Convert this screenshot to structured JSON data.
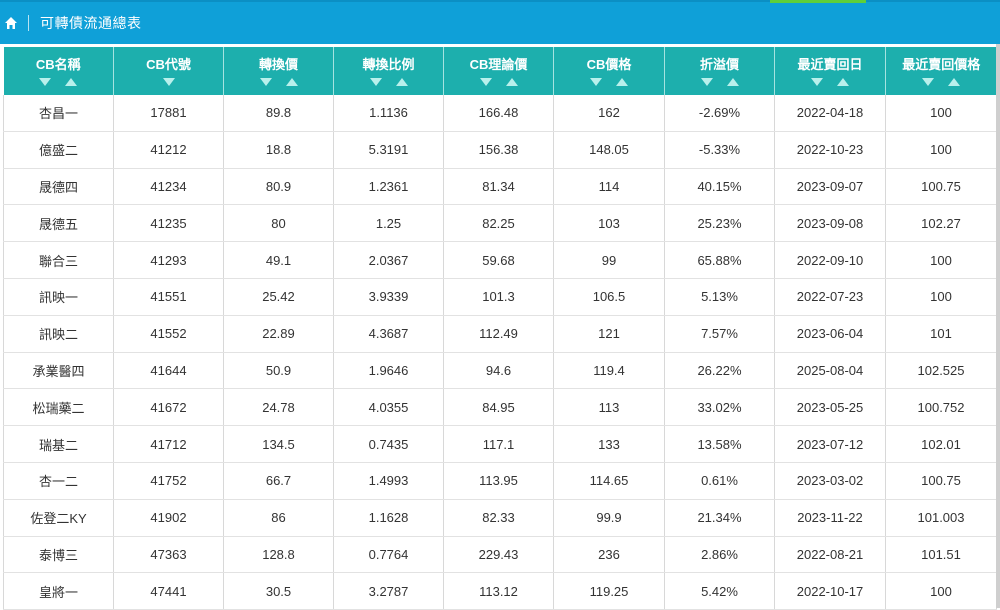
{
  "header": {
    "title": "可轉債流通總表",
    "home_icon": "home-icon",
    "bg_color": "#0fa0d8",
    "accent_color": "#5fcf3a"
  },
  "table": {
    "header_color": "#1dafad",
    "columns": [
      "CB名稱",
      "CB代號",
      "轉換價",
      "轉換比例",
      "CB理論價",
      "CB價格",
      "折溢價",
      "最近賣回日",
      "最近賣回價格"
    ],
    "rows": [
      [
        "杏昌一",
        "17881",
        "89.8",
        "1.1136",
        "166.48",
        "162",
        "-2.69%",
        "2022-04-18",
        "100"
      ],
      [
        "億盛二",
        "41212",
        "18.8",
        "5.3191",
        "156.38",
        "148.05",
        "-5.33%",
        "2022-10-23",
        "100"
      ],
      [
        "晟德四",
        "41234",
        "80.9",
        "1.2361",
        "81.34",
        "114",
        "40.15%",
        "2023-09-07",
        "100.75"
      ],
      [
        "晟德五",
        "41235",
        "80",
        "1.25",
        "82.25",
        "103",
        "25.23%",
        "2023-09-08",
        "102.27"
      ],
      [
        "聯合三",
        "41293",
        "49.1",
        "2.0367",
        "59.68",
        "99",
        "65.88%",
        "2022-09-10",
        "100"
      ],
      [
        "訊映一",
        "41551",
        "25.42",
        "3.9339",
        "101.3",
        "106.5",
        "5.13%",
        "2022-07-23",
        "100"
      ],
      [
        "訊映二",
        "41552",
        "22.89",
        "4.3687",
        "112.49",
        "121",
        "7.57%",
        "2023-06-04",
        "101"
      ],
      [
        "承業醫四",
        "41644",
        "50.9",
        "1.9646",
        "94.6",
        "119.4",
        "26.22%",
        "2025-08-04",
        "102.525"
      ],
      [
        "松瑞藥二",
        "41672",
        "24.78",
        "4.0355",
        "84.95",
        "113",
        "33.02%",
        "2023-05-25",
        "100.752"
      ],
      [
        "瑞基二",
        "41712",
        "134.5",
        "0.7435",
        "117.1",
        "133",
        "13.58%",
        "2023-07-12",
        "102.01"
      ],
      [
        "杏一二",
        "41752",
        "66.7",
        "1.4993",
        "113.95",
        "114.65",
        "0.61%",
        "2023-03-02",
        "100.75"
      ],
      [
        "佐登二KY",
        "41902",
        "86",
        "1.1628",
        "82.33",
        "99.9",
        "21.34%",
        "2023-11-22",
        "101.003"
      ],
      [
        "泰博三",
        "47363",
        "128.8",
        "0.7764",
        "229.43",
        "236",
        "2.86%",
        "2022-08-21",
        "101.51"
      ],
      [
        "皇將一",
        "47441",
        "30.5",
        "3.2787",
        "113.12",
        "119.25",
        "5.42%",
        "2022-10-17",
        "100"
      ]
    ]
  }
}
